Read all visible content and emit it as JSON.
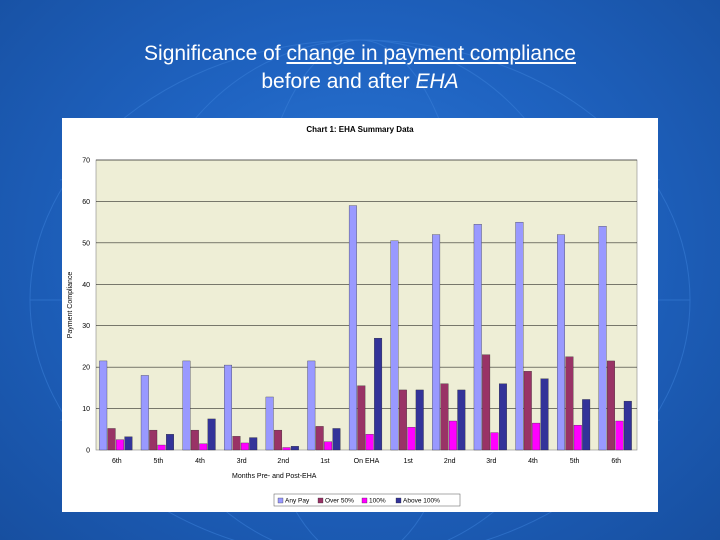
{
  "slide": {
    "title_part1": "Significance of ",
    "title_part2": "change in payment compliance",
    "title_part3": "before and after ",
    "title_part4": "EHA",
    "background_color": "#1f63c1"
  },
  "chart_data": {
    "type": "bar",
    "title": "Chart 1: EHA Summary Data",
    "xlabel": "Months Pre- and Post-EHA",
    "ylabel": "Payment Compliance",
    "ylim": [
      0,
      70
    ],
    "yticks": [
      0,
      10,
      20,
      30,
      40,
      50,
      60,
      70
    ],
    "grid": true,
    "legend_position": "bottom",
    "categories": [
      "6th",
      "5th",
      "4th",
      "3rd",
      "2nd",
      "1st",
      "On EHA",
      "1st",
      "2nd",
      "3rd",
      "4th",
      "5th",
      "6th"
    ],
    "series": [
      {
        "name": "Any Pay",
        "color": "#9999ff",
        "values": [
          21.5,
          18,
          21.5,
          20.5,
          12.8,
          21.5,
          59,
          50.5,
          52,
          54.5,
          55,
          52,
          54
        ]
      },
      {
        "name": "Over 50%",
        "color": "#993366",
        "values": [
          5.2,
          4.8,
          4.8,
          3.3,
          4.8,
          5.7,
          15.5,
          14.5,
          16,
          23,
          19,
          22.5,
          21.5
        ]
      },
      {
        "name": "100%",
        "color": "#ff00ff",
        "values": [
          2.5,
          1.2,
          1.5,
          1.7,
          0.6,
          2,
          3.8,
          5.5,
          7,
          4.2,
          6.5,
          6,
          7
        ]
      },
      {
        "name": "Above 100%",
        "color": "#333399",
        "values": [
          3.2,
          3.8,
          7.5,
          3,
          0.9,
          5.2,
          27,
          14.5,
          14.5,
          16,
          17.2,
          12.2,
          11.8
        ]
      }
    ],
    "plot_background": "#eeeed6"
  }
}
